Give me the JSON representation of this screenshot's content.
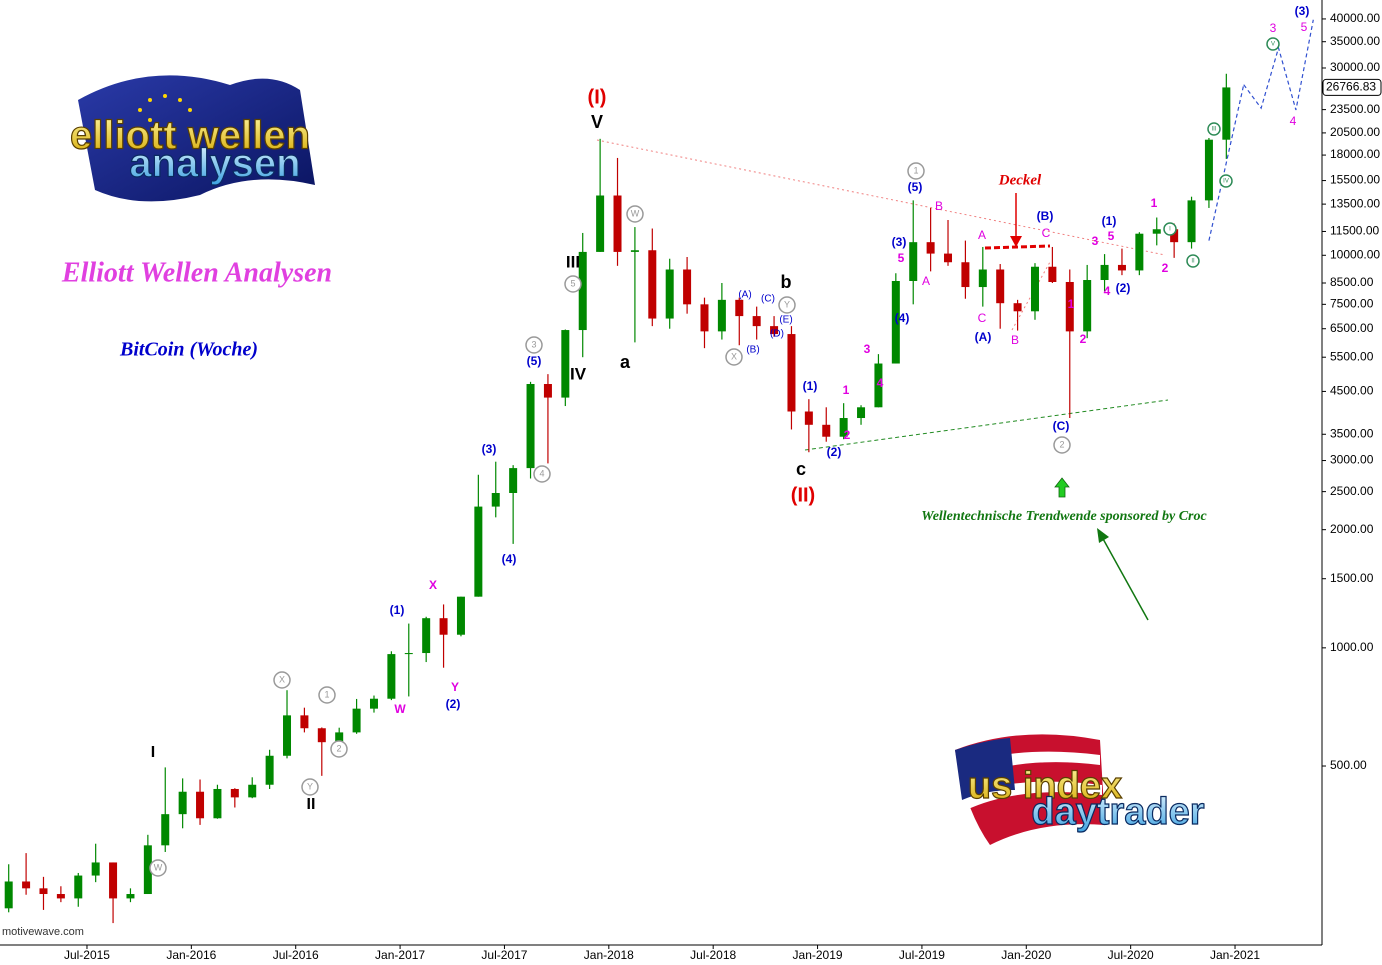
{
  "chart_data": {
    "type": "candlestick",
    "logos": [
      {
        "line1": "elliott wellen",
        "line2": "analysen"
      },
      {
        "line1": "us index",
        "line2": "daytrader"
      }
    ],
    "title": "Elliott Wellen Analysen",
    "subtitle": "BitCoin (Woche)",
    "source": "motivewave.com",
    "xlim": [
      "Feb-2015",
      "Jun-2021"
    ],
    "xticks": [
      "Jul-2015",
      "Jan-2016",
      "Jul-2016",
      "Jan-2017",
      "Jul-2017",
      "Jan-2018",
      "Jul-2018",
      "Jan-2019",
      "Jul-2019",
      "Jan-2020",
      "Jul-2020",
      "Jan-2021"
    ],
    "ylim": [
      175,
      44700
    ],
    "log_scale": true,
    "yticks": [
      {
        "value": 40000,
        "label": "40000.00"
      },
      {
        "value": 35000,
        "label": "35000.00"
      },
      {
        "value": 30000,
        "label": "30000.00"
      },
      {
        "value": 23500,
        "label": "23500.00"
      },
      {
        "value": 20500,
        "label": "20500.00"
      },
      {
        "value": 18000,
        "label": "18000.00"
      },
      {
        "value": 15500,
        "label": "15500.00"
      },
      {
        "value": 13500,
        "label": "13500.00"
      },
      {
        "value": 11500,
        "label": "11500.00"
      },
      {
        "value": 10000,
        "label": "10000.00"
      },
      {
        "value": 8500,
        "label": "8500.00"
      },
      {
        "value": 7500,
        "label": "7500.00"
      },
      {
        "value": 6500,
        "label": "6500.00"
      },
      {
        "value": 5500,
        "label": "5500.00"
      },
      {
        "value": 4500,
        "label": "4500.00"
      },
      {
        "value": 3500,
        "label": "3500.00"
      },
      {
        "value": 3000,
        "label": "3000.00"
      },
      {
        "value": 2500,
        "label": "2500.00"
      },
      {
        "value": 2000,
        "label": "2000.00"
      },
      {
        "value": 1500,
        "label": "1500.00"
      },
      {
        "value": 1000,
        "label": "1000.00"
      },
      {
        "value": 500,
        "label": "500.00"
      }
    ],
    "last_price": 26766.83,
    "up_color": "#008800",
    "down_color": "#c00000",
    "x": [
      "Feb-2015",
      "Mar-2015",
      "Apr-2015",
      "May-2015",
      "Jun-2015",
      "Jul-2015",
      "Aug-2015",
      "Sep-2015",
      "Oct-2015",
      "Nov-2015",
      "Dec-2015",
      "Jan-2016",
      "Feb-2016",
      "Mar-2016",
      "Apr-2016",
      "May-2016",
      "Jun-2016",
      "Jul-2016",
      "Aug-2016",
      "Sep-2016",
      "Oct-2016",
      "Nov-2016",
      "Dec-2016",
      "Jan-2017",
      "Feb-2017",
      "Mar-2017",
      "Apr-2017",
      "May-2017",
      "Jun-2017",
      "Jul-2017",
      "Aug-2017",
      "Sep-2017",
      "Oct-2017",
      "Nov-2017",
      "Dec-2017",
      "Jan-2018",
      "Feb-2018",
      "Mar-2018",
      "Apr-2018",
      "May-2018",
      "Jun-2018",
      "Jul-2018",
      "Aug-2018",
      "Sep-2018",
      "Oct-2018",
      "Nov-2018",
      "Dec-2018",
      "Jan-2019",
      "Feb-2019",
      "Mar-2019",
      "Apr-2019",
      "May-2019",
      "Jun-2019",
      "Jul-2019",
      "Aug-2019",
      "Sep-2019",
      "Oct-2019",
      "Nov-2019",
      "Dec-2019",
      "Jan-2020",
      "Feb-2020",
      "Mar-2020",
      "Apr-2020",
      "May-2020",
      "Jun-2020",
      "Jul-2020",
      "Aug-2020",
      "Sep-2020",
      "Oct-2020",
      "Nov-2020",
      "Dec-2020"
    ],
    "open": [
      217,
      254,
      244,
      236,
      230,
      263,
      284,
      230,
      236,
      314,
      377,
      430,
      368,
      437,
      416,
      448,
      531,
      673,
      624,
      575,
      609,
      700,
      742,
      964,
      970,
      1190,
      1080,
      1350,
      2290,
      2480,
      2870,
      4700,
      4340,
      6450,
      10200,
      14200,
      10200,
      10300,
      6900,
      9200,
      7500,
      6400,
      7700,
      7000,
      6600,
      6300,
      4000,
      3700,
      3450,
      3850,
      4100,
      5300,
      8600,
      10800,
      10100,
      9600,
      8300,
      9200,
      7550,
      7200,
      9350,
      8550,
      6400,
      8650,
      9450,
      9150,
      11350,
      11650,
      10800,
      13800,
      19700
    ],
    "high": [
      281,
      300,
      261,
      247,
      267,
      317,
      284,
      244,
      334,
      496,
      465,
      462,
      448,
      439,
      468,
      550,
      780,
      704,
      627,
      626,
      741,
      756,
      980,
      1153,
      1200,
      1290,
      1350,
      2760,
      2980,
      2920,
      4760,
      4980,
      6470,
      11400,
      19800,
      17700,
      11800,
      11700,
      9800,
      9900,
      7800,
      8500,
      7800,
      7400,
      7000,
      6600,
      4300,
      4100,
      4200,
      4150,
      5600,
      9000,
      13800,
      13200,
      12300,
      10900,
      10500,
      9500,
      7700,
      9550,
      10500,
      9200,
      9450,
      10070,
      10400,
      11450,
      12480,
      12050,
      14100,
      19900,
      29000
    ],
    "low": [
      212,
      235,
      215,
      225,
      219,
      253,
      199,
      225,
      236,
      302,
      347,
      354,
      367,
      392,
      414,
      437,
      523,
      609,
      472,
      567,
      604,
      684,
      736,
      752,
      920,
      890,
      1070,
      1350,
      2150,
      1840,
      2700,
      2950,
      4130,
      5500,
      10200,
      9400,
      6000,
      6600,
      6500,
      7100,
      5800,
      6100,
      5900,
      6100,
      6200,
      3600,
      3150,
      3350,
      3400,
      3700,
      4100,
      5300,
      7500,
      9100,
      9400,
      7750,
      7400,
      6500,
      6430,
      6850,
      8500,
      3850,
      6150,
      8100,
      8900,
      8900,
      10600,
      9850,
      10400,
      13200,
      17600
    ],
    "close": [
      254,
      244,
      236,
      230,
      263,
      284,
      230,
      236,
      314,
      377,
      430,
      368,
      437,
      416,
      448,
      531,
      673,
      624,
      575,
      609,
      700,
      742,
      964,
      970,
      1190,
      1080,
      1350,
      2290,
      2480,
      2870,
      4700,
      4340,
      6450,
      10200,
      14200,
      10200,
      10300,
      6900,
      9200,
      7500,
      6400,
      7700,
      7000,
      6600,
      6300,
      4000,
      3700,
      3450,
      3850,
      4100,
      5300,
      8600,
      10800,
      10100,
      9600,
      8300,
      9200,
      7550,
      7200,
      9350,
      8550,
      6400,
      8650,
      9450,
      9150,
      11350,
      11650,
      10800,
      13800,
      19700,
      26767
    ],
    "projections": [
      {
        "color": "#3050d0",
        "x": [
          "Jan-2021",
          "Feb-2021",
          "Mar-2021",
          "Apr-2021",
          "May-2021"
        ],
        "values": [
          27200,
          23700,
          33750,
          23450,
          39800
        ]
      },
      {
        "color": "#3050d0",
        "x": [
          "Nov-2020",
          "Jan-2021"
        ],
        "values": [
          10900,
          27200
        ]
      }
    ],
    "annotations": [
      {
        "text": "(I)",
        "color": "#e00000"
      },
      {
        "text": "V",
        "color": "#000"
      },
      {
        "text": "III",
        "color": "#000"
      },
      {
        "text": "IV",
        "color": "#000"
      },
      {
        "text": "a",
        "color": "#000"
      },
      {
        "text": "b",
        "color": "#000"
      },
      {
        "text": "c",
        "color": "#000"
      },
      {
        "text": "(II)",
        "color": "#e00000"
      },
      {
        "text": "I",
        "color": "#000"
      },
      {
        "text": "II",
        "color": "#000"
      },
      {
        "text": "W",
        "color": "#999",
        "circled": true
      },
      {
        "text": "5",
        "color": "#999",
        "circled": true
      },
      {
        "text": "3",
        "color": "#999",
        "circled": true
      },
      {
        "text": "(5)",
        "color": "#0000cc"
      },
      {
        "text": "4",
        "color": "#999",
        "circled": true
      },
      {
        "text": "(3)",
        "color": "#0000cc"
      },
      {
        "text": "(4)",
        "color": "#0000cc"
      },
      {
        "text": "(1)",
        "color": "#0000cc"
      },
      {
        "text": "(2)",
        "color": "#0000cc"
      },
      {
        "text": "X",
        "color": "#e000e0"
      },
      {
        "text": "Y",
        "color": "#e000e0"
      },
      {
        "text": "W",
        "color": "#e000e0"
      },
      {
        "text": "X",
        "color": "#999",
        "circled": true
      },
      {
        "text": "Y",
        "color": "#999",
        "circled": true
      },
      {
        "text": "1",
        "color": "#999",
        "circled": true
      },
      {
        "text": "2",
        "color": "#999",
        "circled": true
      },
      {
        "text": "W",
        "color": "#999",
        "circled": true
      },
      {
        "text": "(A)",
        "color": "#0000cc"
      },
      {
        "text": "(C)",
        "color": "#0000cc"
      },
      {
        "text": "Y",
        "color": "#999",
        "circled": true
      },
      {
        "text": "(E)",
        "color": "#0000cc"
      },
      {
        "text": "(D)",
        "color": "#0000cc"
      },
      {
        "text": "(B)",
        "color": "#0000cc"
      },
      {
        "text": "X",
        "color": "#999",
        "circled": true
      },
      {
        "text": "(1)",
        "color": "#0000cc"
      },
      {
        "text": "(2)",
        "color": "#0000cc"
      },
      {
        "text": "1",
        "color": "#e000e0"
      },
      {
        "text": "2",
        "color": "#e000e0"
      },
      {
        "text": "3",
        "color": "#e000e0"
      },
      {
        "text": "4",
        "color": "#e000e0"
      },
      {
        "text": "(4)",
        "color": "#0000cc"
      },
      {
        "text": "5",
        "color": "#e000e0"
      },
      {
        "text": "(3)",
        "color": "#0000cc"
      },
      {
        "text": "A",
        "color": "#e000e0"
      },
      {
        "text": "1",
        "color": "#999",
        "circled": true
      },
      {
        "text": "(5)",
        "color": "#0000cc"
      },
      {
        "text": "B",
        "color": "#e000e0"
      },
      {
        "text": "A",
        "color": "#e000e0"
      },
      {
        "text": "C",
        "color": "#e000e0"
      },
      {
        "text": "(A)",
        "color": "#0000cc"
      },
      {
        "text": "B",
        "color": "#e000e0"
      },
      {
        "text": "C",
        "color": "#e000e0"
      },
      {
        "text": "(B)",
        "color": "#0000cc"
      },
      {
        "text": "(C)",
        "color": "#0000cc"
      },
      {
        "text": "2",
        "color": "#999",
        "circled": true
      },
      {
        "text": "1",
        "color": "#e000e0"
      },
      {
        "text": "2",
        "color": "#e000e0"
      },
      {
        "text": "3",
        "color": "#e000e0"
      },
      {
        "text": "(1)",
        "color": "#0000cc"
      },
      {
        "text": "5",
        "color": "#e000e0"
      },
      {
        "text": "4",
        "color": "#e000e0"
      },
      {
        "text": "(2)",
        "color": "#0000cc"
      },
      {
        "text": "1",
        "color": "#e000e0"
      },
      {
        "text": "2",
        "color": "#e000e0"
      },
      {
        "text": "I",
        "color": "#2e8b57",
        "circled": true
      },
      {
        "text": "II",
        "color": "#2e8b57",
        "circled": true
      },
      {
        "text": "III",
        "color": "#2e8b57",
        "circled": true
      },
      {
        "text": "IV",
        "color": "#2e8b57",
        "circled": true
      },
      {
        "text": "V",
        "color": "#2e8b57",
        "circled": true
      },
      {
        "text": "3",
        "color": "#e000e0"
      },
      {
        "text": "(3)",
        "color": "#0000cc"
      },
      {
        "text": "5",
        "color": "#e000e0"
      },
      {
        "text": "4",
        "color": "#e000e0"
      },
      {
        "text": "Deckel",
        "color": "#e00000"
      },
      {
        "text": "Wellentechnische Trendwende sponsored by Croc",
        "color": "#117711"
      }
    ]
  }
}
